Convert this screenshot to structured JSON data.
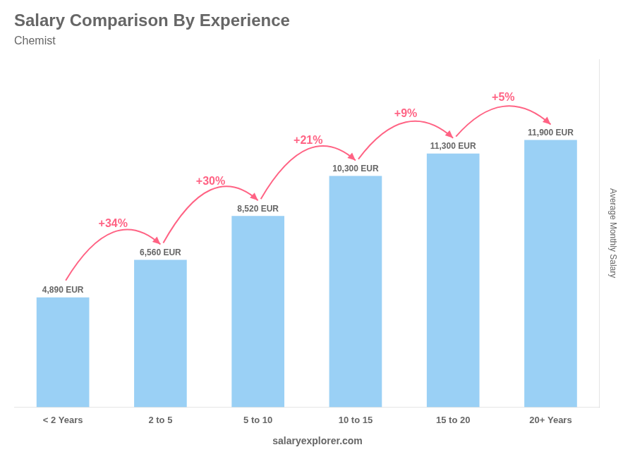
{
  "chart_data": {
    "type": "bar",
    "title": "Salary Comparison By Experience",
    "subtitle": "Chemist",
    "y_label": "Average Monthly Salary",
    "categories": [
      "< 2 Years",
      "2 to 5",
      "5 to 10",
      "10 to 15",
      "15 to 20",
      "20+ Years"
    ],
    "values": [
      4890,
      6560,
      8520,
      10300,
      11300,
      11900
    ],
    "value_labels": [
      "4,890 EUR",
      "6,560 EUR",
      "8,520 EUR",
      "10,300 EUR",
      "11,300 EUR",
      "11,900 EUR"
    ],
    "data_labels": true,
    "annotations": [
      "+34%",
      "+30%",
      "+21%",
      "+9%",
      "+5%"
    ],
    "footer": "salaryexplorer.com",
    "ylim": [
      0,
      15500
    ],
    "tick_labels": "x",
    "grid": false
  }
}
